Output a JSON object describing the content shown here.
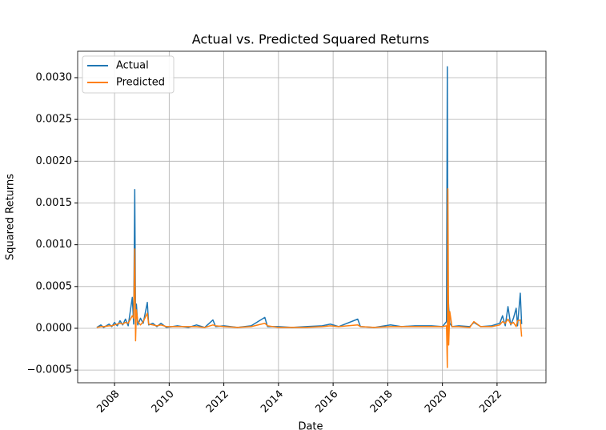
{
  "chart_data": {
    "type": "line",
    "title": "Actual vs. Predicted Squared Returns",
    "x_label": "Date",
    "y_label": "Squared Returns",
    "x": [
      2007.35,
      2007.5,
      2007.6,
      2007.8,
      2007.9,
      2008.0,
      2008.1,
      2008.2,
      2008.3,
      2008.4,
      2008.5,
      2008.65,
      2008.7,
      2008.74,
      2008.77,
      2008.8,
      2008.85,
      2008.95,
      2009.05,
      2009.2,
      2009.25,
      2009.4,
      2009.55,
      2009.7,
      2009.9,
      2010.3,
      2010.7,
      2011.0,
      2011.3,
      2011.6,
      2011.7,
      2012.0,
      2012.5,
      2013.0,
      2013.5,
      2013.6,
      2014.0,
      2014.5,
      2015.0,
      2015.6,
      2015.9,
      2016.2,
      2016.9,
      2017.0,
      2017.5,
      2018.1,
      2018.5,
      2019.0,
      2019.6,
      2020.0,
      2020.15,
      2020.18,
      2020.2,
      2020.23,
      2020.27,
      2020.35,
      2020.6,
      2021.0,
      2021.15,
      2021.4,
      2021.8,
      2022.1,
      2022.2,
      2022.3,
      2022.4,
      2022.5,
      2022.6,
      2022.7,
      2022.75,
      2022.85,
      2022.9
    ],
    "series": [
      {
        "name": "Actual",
        "color": "#1f77b4",
        "values": [
          1e-05,
          4e-05,
          1e-05,
          5e-05,
          2e-05,
          7e-05,
          3e-05,
          9e-05,
          4e-05,
          0.00011,
          3e-05,
          0.00037,
          5e-05,
          0.00166,
          8e-05,
          0.00029,
          4e-05,
          0.00012,
          6e-05,
          0.00031,
          4e-05,
          6e-05,
          2e-05,
          6e-05,
          1e-05,
          3e-05,
          1e-05,
          4e-05,
          1e-05,
          0.0001,
          2e-05,
          3e-05,
          1e-05,
          3e-05,
          0.00013,
          2e-05,
          2e-05,
          1e-05,
          2e-05,
          3e-05,
          5e-05,
          2e-05,
          0.00011,
          2e-05,
          1e-05,
          4e-05,
          2e-05,
          3e-05,
          3e-05,
          2e-05,
          8e-05,
          0.00313,
          0.00048,
          0.00025,
          6e-05,
          2e-05,
          3e-05,
          2e-05,
          7e-05,
          2e-05,
          3e-05,
          6e-05,
          0.00015,
          3e-05,
          0.00026,
          4e-05,
          0.00012,
          0.00024,
          3e-05,
          0.00042,
          5e-05
        ]
      },
      {
        "name": "Predicted",
        "color": "#ff7f0e",
        "values": [
          1e-05,
          2e-05,
          2e-05,
          3e-05,
          3e-05,
          4e-05,
          5e-05,
          6e-05,
          5e-05,
          7e-05,
          6e-05,
          0.00015,
          0.00012,
          0.00095,
          -0.00015,
          0.00022,
          8e-05,
          4e-05,
          8e-05,
          0.00018,
          5e-05,
          4e-05,
          3e-05,
          4e-05,
          2e-05,
          2e-05,
          2e-05,
          2e-05,
          1e-05,
          4e-05,
          3e-05,
          2e-05,
          1e-05,
          2e-05,
          6e-05,
          3e-05,
          1e-05,
          1e-05,
          1e-05,
          2e-05,
          3e-05,
          2e-05,
          4e-05,
          2e-05,
          1e-05,
          2e-05,
          2e-05,
          2e-05,
          2e-05,
          2e-05,
          3e-05,
          -0.00047,
          0.00167,
          -0.0002,
          0.0002,
          2e-05,
          2e-05,
          1e-05,
          8e-05,
          2e-05,
          2e-05,
          4e-05,
          8e-05,
          6e-05,
          0.00011,
          5e-05,
          7e-05,
          2e-05,
          9e-05,
          0.0001,
          -0.0001
        ]
      }
    ],
    "xlim": [
      2006.65,
      2023.79
    ],
    "xticks": [
      2008,
      2010,
      2012,
      2014,
      2016,
      2018,
      2020,
      2022
    ],
    "ylim": [
      -0.000652,
      0.003316
    ],
    "yticks": [
      {
        "value": -0.0005,
        "label": "−0.0005"
      },
      {
        "value": 0,
        "label": "0.0000"
      },
      {
        "value": 0.0005,
        "label": "0.0005"
      },
      {
        "value": 0.001,
        "label": "0.0010"
      },
      {
        "value": 0.0015,
        "label": "0.0015"
      },
      {
        "value": 0.002,
        "label": "0.0020"
      },
      {
        "value": 0.0025,
        "label": "0.0025"
      },
      {
        "value": 0.003,
        "label": "0.0030"
      }
    ],
    "grid": true,
    "legend": "upper-left"
  }
}
